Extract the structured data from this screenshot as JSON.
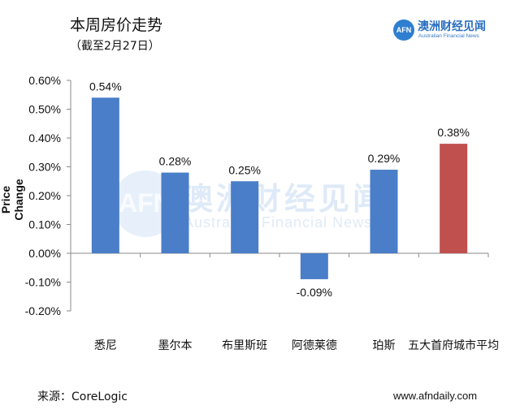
{
  "header": {
    "title": "本周房价走势",
    "subtitle": "（截至2月27日）"
  },
  "brand": {
    "logo_text": "AFN",
    "name_cn": "澳洲财经见闻",
    "name_en": "Australian Financial News"
  },
  "watermark": {
    "logo_text": "AFN",
    "name_cn": "澳洲财经见闻",
    "name_en": "Australian Financial News"
  },
  "footer": {
    "source": "来源：CoreLogic",
    "website": "www.afndaily.com"
  },
  "chart_data": {
    "type": "bar",
    "title": "本周房价走势",
    "subtitle": "（截至2月27日）",
    "xlabel": "",
    "ylabel": "Price Change",
    "ylim": [
      -0.002,
      0.006
    ],
    "y_ticks": [
      "0.60%",
      "0.50%",
      "0.40%",
      "0.30%",
      "0.20%",
      "0.10%",
      "0.00%",
      "-0.10%",
      "-0.20%"
    ],
    "y_tick_values": [
      0.006,
      0.005,
      0.004,
      0.003,
      0.002,
      0.001,
      0.0,
      -0.001,
      -0.002
    ],
    "categories": [
      "悉尼",
      "墨尔本",
      "布里斯班",
      "阿德莱德",
      "珀斯",
      "五大首府城市平均"
    ],
    "values": [
      0.0054,
      0.0028,
      0.0025,
      -0.0009,
      0.0029,
      0.0038
    ],
    "data_labels": [
      "0.54%",
      "0.28%",
      "0.25%",
      "-0.09%",
      "0.29%",
      "0.38%"
    ],
    "colors": [
      "#4a7ec8",
      "#4a7ec8",
      "#4a7ec8",
      "#4a7ec8",
      "#4a7ec8",
      "#c0504d"
    ],
    "grid": false,
    "legend": "none"
  }
}
